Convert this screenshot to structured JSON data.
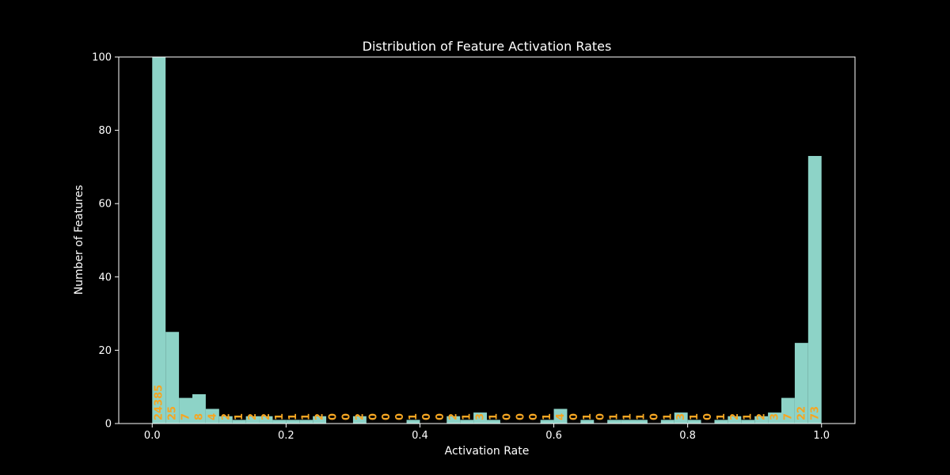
{
  "chart_data": {
    "type": "bar",
    "title": "Distribution of Feature Activation Rates",
    "xlabel": "Activation Rate",
    "ylabel": "Number of Features",
    "xlim": [
      -0.05,
      1.05
    ],
    "ylim": [
      0,
      100
    ],
    "xticks": [
      "0.0",
      "0.2",
      "0.4",
      "0.6",
      "0.8",
      "1.0"
    ],
    "yticks": [
      "0",
      "20",
      "40",
      "60",
      "80",
      "100"
    ],
    "bin_edges_start": 0.0,
    "bin_width": 0.02,
    "values": [
      24385,
      25,
      7,
      8,
      4,
      2,
      1,
      2,
      2,
      1,
      1,
      1,
      2,
      0,
      0,
      2,
      0,
      0,
      0,
      1,
      0,
      0,
      2,
      1,
      3,
      1,
      0,
      0,
      0,
      1,
      4,
      0,
      1,
      0,
      1,
      1,
      1,
      0,
      1,
      3,
      1,
      0,
      1,
      2,
      1,
      2,
      3,
      7,
      22,
      73
    ],
    "bar_labels": [
      "24385",
      "25",
      "7",
      "8",
      "4",
      "2",
      "1",
      "2",
      "2",
      "1",
      "1",
      "1",
      "2",
      "0",
      "0",
      "2",
      "0",
      "0",
      "0",
      "1",
      "0",
      "0",
      "2",
      "1",
      "3",
      "1",
      "0",
      "0",
      "0",
      "1",
      "4",
      "0",
      "1",
      "0",
      "1",
      "1",
      "1",
      "0",
      "1",
      "3",
      "1",
      "0",
      "1",
      "2",
      "1",
      "2",
      "3",
      "7",
      "22",
      "73"
    ],
    "grid": false,
    "legend": "none",
    "colors": {
      "background": "#000000",
      "bar": "#8dd3c7",
      "bar_label": "#f5a623",
      "text": "#ffffff",
      "axes": "#ffffff"
    }
  }
}
